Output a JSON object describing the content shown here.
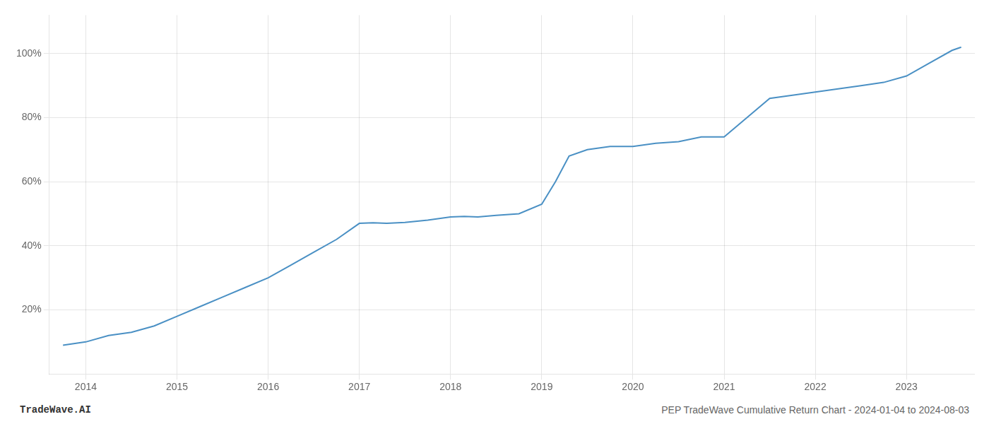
{
  "chart_data": {
    "type": "line",
    "x": [
      2013.75,
      2014.0,
      2014.25,
      2014.5,
      2014.75,
      2015.0,
      2015.25,
      2015.5,
      2015.75,
      2016.0,
      2016.25,
      2016.5,
      2016.75,
      2017.0,
      2017.15,
      2017.3,
      2017.5,
      2017.75,
      2018.0,
      2018.15,
      2018.3,
      2018.5,
      2018.75,
      2019.0,
      2019.15,
      2019.3,
      2019.5,
      2019.75,
      2020.0,
      2020.25,
      2020.5,
      2020.75,
      2021.0,
      2021.25,
      2021.5,
      2021.75,
      2022.0,
      2022.25,
      2022.5,
      2022.75,
      2023.0,
      2023.25,
      2023.5,
      2023.6
    ],
    "values": [
      9,
      10,
      12,
      13,
      15,
      18,
      21,
      24,
      27,
      30,
      34,
      38,
      42,
      47,
      47.2,
      47,
      47.3,
      48,
      49,
      49.2,
      49,
      49.5,
      50,
      53,
      60,
      68,
      70,
      71,
      71,
      72,
      72.5,
      74,
      74,
      80,
      86,
      87,
      88,
      89,
      90,
      91,
      93,
      97,
      101,
      102
    ],
    "color": "#4a90c4",
    "xlim": [
      2013.6,
      2023.75
    ],
    "xticks": [
      2014,
      2015,
      2016,
      2017,
      2018,
      2019,
      2020,
      2021,
      2022,
      2023
    ],
    "ylim": [
      0,
      112
    ],
    "yticks": [
      {
        "value": 20,
        "label": "20%"
      },
      {
        "value": 40,
        "label": "40%"
      },
      {
        "value": 60,
        "label": "60%"
      },
      {
        "value": 80,
        "label": "80%"
      },
      {
        "value": 100,
        "label": "100%"
      }
    ],
    "grid": true,
    "annotations": [
      "TradeWave.AI",
      "PEP TradeWave Cumulative Return Chart - 2024-01-04 to 2024-08-03"
    ]
  }
}
